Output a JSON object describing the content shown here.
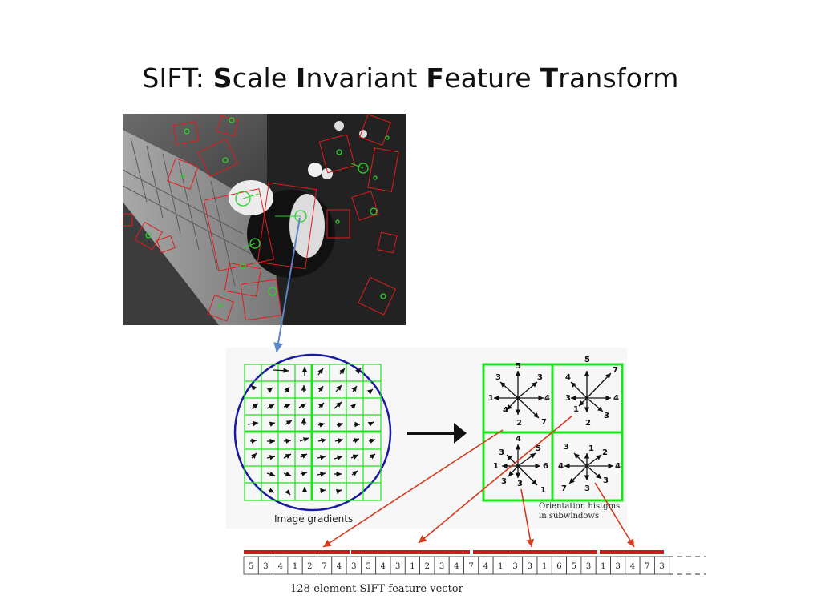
{
  "title": {
    "prefix": "SIFT: ",
    "w1_initial": "S",
    "w1_rest": "cale ",
    "w2_initial": "I",
    "w2_rest": "nvariant ",
    "w3_initial": "F",
    "w3_rest": "eature ",
    "w4_initial": "T",
    "w4_rest": "ransform"
  },
  "photo": {
    "description_icon": "cat-photo-with-keypoints"
  },
  "labels": {
    "image_gradients": "Image gradients",
    "orientation_line1": "Orientation histgms",
    "orientation_line2": "in subwindows",
    "vector_caption": "128-element SIFT feature vector"
  },
  "histograms": [
    {
      "values": [
        "5",
        "3",
        "4",
        "7",
        "2",
        "4",
        "1",
        "3"
      ]
    },
    {
      "values": [
        "5",
        "7",
        "4",
        "3",
        "2",
        "1",
        "3",
        "4"
      ]
    },
    {
      "values": [
        "4",
        "5",
        "6",
        "1",
        "3",
        "3",
        "1",
        "3"
      ]
    },
    {
      "values": [
        "1",
        "2",
        "4",
        "3",
        "3",
        "7",
        "4",
        "3"
      ]
    }
  ],
  "feature_vector": [
    "5",
    "3",
    "4",
    "1",
    "2",
    "7",
    "4",
    "3",
    "5",
    "4",
    "3",
    "1",
    "2",
    "3",
    "4",
    "7",
    "4",
    "1",
    "3",
    "3",
    "1",
    "6",
    "5",
    "3",
    "1",
    "3",
    "4",
    "7",
    "3"
  ],
  "colors": {
    "grid_green": "#1ee21e",
    "circle_blue": "#1a1a9e",
    "red_arrow": "#d63a1e",
    "blue_arrow": "#5b86c8",
    "red_bar": "#cc1a1a"
  }
}
